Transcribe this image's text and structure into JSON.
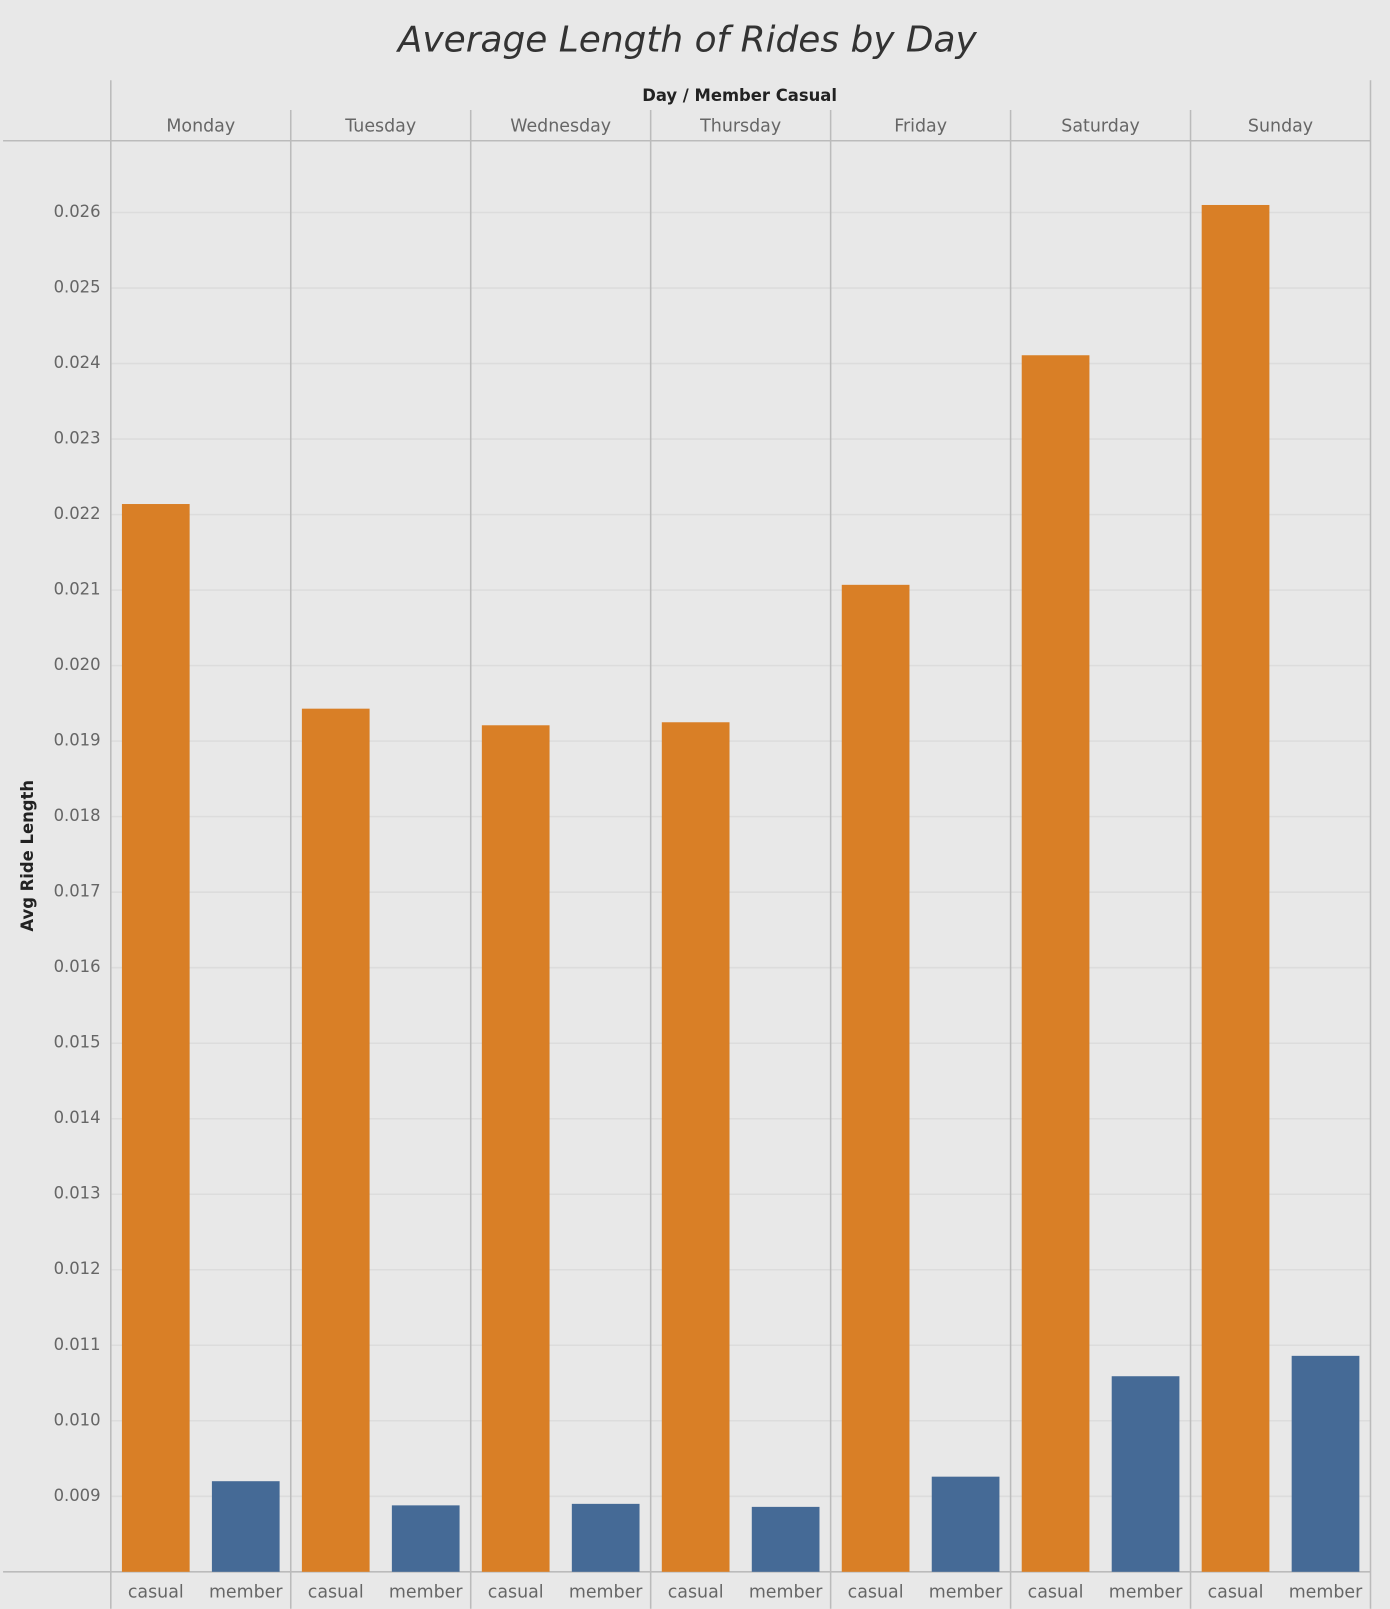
{
  "chart_data": {
    "type": "bar",
    "title": "Average Length of Rides by Day",
    "x_label": "Day / Member Casual",
    "y_label": "Avg Ride Length",
    "categories": [
      "Monday",
      "Tuesday",
      "Wednesday",
      "Thursday",
      "Friday",
      "Saturday",
      "Sunday"
    ],
    "series": [
      {
        "name": "casual",
        "color": "#d97f26",
        "values": [
          0.02214,
          0.01943,
          0.01921,
          0.01925,
          0.02107,
          0.02411,
          0.0261
        ]
      },
      {
        "name": "member",
        "color": "#456a96",
        "values": [
          0.0092,
          0.00888,
          0.0089,
          0.00886,
          0.00926,
          0.01059,
          0.01086
        ]
      }
    ],
    "ylim": [
      0.008,
      0.02695
    ],
    "yticks": [
      0.009,
      {
        "value": 0.01,
        "label": "0.010"
      },
      0.011,
      0.012,
      0.013,
      0.014,
      0.015,
      0.016,
      0.017,
      0.018,
      0.019,
      {
        "value": 0.02,
        "label": "0.020"
      },
      0.021,
      0.022,
      0.023,
      0.024,
      0.025,
      0.026
    ],
    "grid": true
  }
}
